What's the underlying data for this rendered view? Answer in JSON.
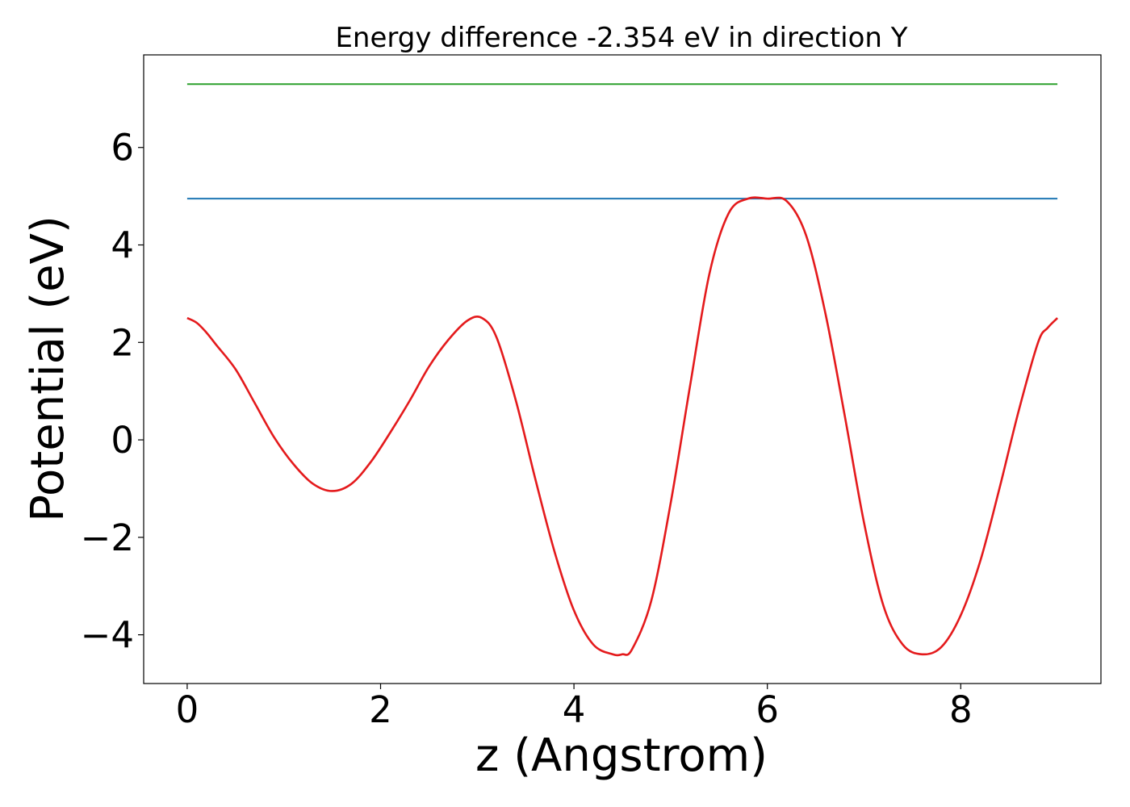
{
  "chart_data": {
    "type": "line",
    "title": "Energy difference -2.354 eV in direction Y",
    "xlabel": "z (Angstrom)",
    "ylabel": "Potential (eV)",
    "xlim": [
      -0.45,
      9.45
    ],
    "ylim": [
      -5.0,
      7.9
    ],
    "xticks": [
      0,
      2,
      4,
      6,
      8
    ],
    "xtick_labels": [
      "0",
      "2",
      "4",
      "6",
      "8"
    ],
    "yticks": [
      -4,
      -2,
      0,
      2,
      4,
      6
    ],
    "ytick_labels": [
      "−4",
      "−2",
      "0",
      "2",
      "4",
      "6"
    ],
    "grid": false,
    "legend": "none",
    "series": [
      {
        "color": "#2ca02c",
        "style": "horizontal",
        "x": [
          0,
          9
        ],
        "y": [
          7.3,
          7.3
        ]
      },
      {
        "color": "#1f77b4",
        "style": "horizontal",
        "x": [
          0,
          9
        ],
        "y": [
          4.95,
          4.95
        ]
      },
      {
        "color": "#e41a1c",
        "style": "curve",
        "x": [
          0,
          0.1,
          0.2,
          0.3,
          0.5,
          0.7,
          0.9,
          1.1,
          1.3,
          1.5,
          1.7,
          1.9,
          2.1,
          2.3,
          2.5,
          2.7,
          2.9,
          3.05,
          3.2,
          3.4,
          3.6,
          3.8,
          4.0,
          4.2,
          4.4,
          4.5,
          4.6,
          4.8,
          5.0,
          5.2,
          5.4,
          5.6,
          5.8,
          6.0,
          6.2,
          6.4,
          6.6,
          6.8,
          7.0,
          7.2,
          7.4,
          7.6,
          7.8,
          8.0,
          8.2,
          8.4,
          8.6,
          8.8,
          8.9,
          9.0
        ],
        "y": [
          2.5,
          2.4,
          2.2,
          1.95,
          1.45,
          0.75,
          0.05,
          -0.5,
          -0.9,
          -1.05,
          -0.9,
          -0.45,
          0.15,
          0.8,
          1.5,
          2.05,
          2.45,
          2.5,
          2.1,
          0.8,
          -0.8,
          -2.3,
          -3.5,
          -4.2,
          -4.4,
          -4.4,
          -4.3,
          -3.3,
          -1.3,
          1.1,
          3.4,
          4.65,
          4.95,
          4.95,
          4.9,
          4.2,
          2.6,
          0.5,
          -1.7,
          -3.4,
          -4.2,
          -4.4,
          -4.25,
          -3.6,
          -2.5,
          -1.0,
          0.6,
          2.0,
          2.3,
          2.5
        ]
      }
    ]
  }
}
